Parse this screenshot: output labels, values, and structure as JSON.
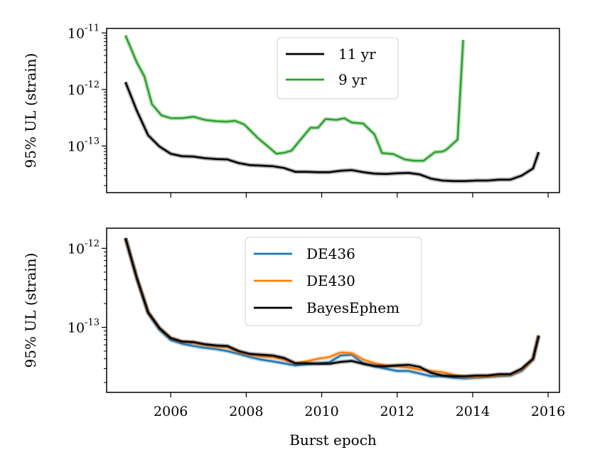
{
  "chart_data": [
    {
      "type": "line",
      "ylabel": "95% UL (strain)",
      "yscale": "log",
      "ylim": [
        1.5e-14,
        1.2e-11
      ],
      "xlim": [
        2004.3,
        2016.3
      ],
      "ytick_labels": [
        "10^-11",
        "10^-12",
        "10^-13"
      ],
      "ytick_values": [
        1e-11,
        1e-12,
        1e-13
      ],
      "legend_position": "top-center",
      "series": [
        {
          "name": "11 yr",
          "color": "#000000",
          "x": [
            2004.8,
            2005.1,
            2005.4,
            2005.7,
            2006.0,
            2006.3,
            2006.6,
            2006.9,
            2007.2,
            2007.5,
            2007.8,
            2008.1,
            2008.4,
            2008.7,
            2009.0,
            2009.3,
            2009.6,
            2009.9,
            2010.2,
            2010.5,
            2010.8,
            2011.1,
            2011.4,
            2011.7,
            2012.0,
            2012.3,
            2012.6,
            2012.9,
            2013.2,
            2013.5,
            2013.8,
            2014.1,
            2014.4,
            2014.7,
            2015.0,
            2015.3,
            2015.6,
            2015.75
          ],
          "y": [
            1.35e-12,
            4.2e-13,
            1.55e-13,
            9.8e-14,
            7.3e-14,
            6.6e-14,
            6.5e-14,
            6.1e-14,
            5.9e-14,
            5.8e-14,
            5e-14,
            4.6e-14,
            4.5e-14,
            4.4e-14,
            4.1e-14,
            3.5e-14,
            3.5e-14,
            3.45e-14,
            3.45e-14,
            3.65e-14,
            3.75e-14,
            3.45e-14,
            3.25e-14,
            3.2e-14,
            3.3e-14,
            3.35e-14,
            3.15e-14,
            2.65e-14,
            2.45e-14,
            2.4e-14,
            2.4e-14,
            2.45e-14,
            2.45e-14,
            2.55e-14,
            2.55e-14,
            3e-14,
            4e-14,
            7.8e-14
          ]
        },
        {
          "name": "9 yr",
          "color": "#2ca02c",
          "x": [
            2004.8,
            2005.1,
            2005.3,
            2005.5,
            2005.75,
            2006.0,
            2006.3,
            2006.6,
            2006.9,
            2007.2,
            2007.5,
            2007.7,
            2007.95,
            2008.3,
            2008.6,
            2008.8,
            2009.0,
            2009.2,
            2009.4,
            2009.7,
            2009.9,
            2010.1,
            2010.4,
            2010.6,
            2010.8,
            2011.1,
            2011.4,
            2011.6,
            2011.9,
            2012.2,
            2012.45,
            2012.7,
            2013.0,
            2013.2,
            2013.3,
            2013.6,
            2013.75
          ],
          "y": [
            9e-12,
            3e-12,
            1.7e-12,
            5.5e-13,
            3.5e-13,
            3.1e-13,
            3.1e-13,
            3.3e-13,
            2.9e-13,
            2.75e-13,
            2.7e-13,
            2.8e-13,
            2.4e-13,
            1.4e-13,
            9.5e-14,
            7.3e-14,
            7.6e-14,
            8.3e-14,
            1.2e-13,
            2.1e-13,
            2.1e-13,
            3e-13,
            2.9e-13,
            3.1e-13,
            2.6e-13,
            2.5e-13,
            1.6e-13,
            7.5e-14,
            7.2e-14,
            5.8e-14,
            5.5e-14,
            5.5e-14,
            7.8e-14,
            8e-14,
            8.6e-14,
            1.3e-13,
            7.5e-12
          ]
        }
      ]
    },
    {
      "type": "line",
      "ylabel": "95% UL (strain)",
      "xlabel": "Burst epoch",
      "yscale": "log",
      "ylim": [
        1.5e-14,
        1.8e-12
      ],
      "xlim": [
        2004.3,
        2016.3
      ],
      "xtick_labels": [
        "2006",
        "2008",
        "2010",
        "2012",
        "2014",
        "2016"
      ],
      "xtick_values": [
        2006,
        2008,
        2010,
        2012,
        2014,
        2016
      ],
      "ytick_labels": [
        "10^-12",
        "10^-13"
      ],
      "ytick_values": [
        1e-12,
        1e-13
      ],
      "legend_position": "top-center",
      "series": [
        {
          "name": "DE436",
          "color": "#1f77b4",
          "x": [
            2004.8,
            2005.1,
            2005.4,
            2005.7,
            2006.0,
            2006.3,
            2006.6,
            2006.9,
            2007.2,
            2007.5,
            2007.8,
            2008.1,
            2008.4,
            2008.7,
            2009.0,
            2009.3,
            2009.6,
            2009.9,
            2010.2,
            2010.5,
            2010.8,
            2011.1,
            2011.4,
            2011.7,
            2012.0,
            2012.3,
            2012.6,
            2012.9,
            2013.2,
            2013.5,
            2013.8,
            2014.1,
            2014.4,
            2014.7,
            2015.0,
            2015.3,
            2015.6,
            2015.75
          ],
          "y": [
            1.35e-12,
            4.2e-13,
            1.5e-13,
            9.3e-14,
            6.9e-14,
            6.2e-14,
            5.8e-14,
            5.5e-14,
            5.3e-14,
            5e-14,
            4.6e-14,
            4.2e-14,
            3.9e-14,
            3.7e-14,
            3.5e-14,
            3.3e-14,
            3.4e-14,
            3.5e-14,
            3.6e-14,
            4.4e-14,
            4.5e-14,
            3.5e-14,
            3.2e-14,
            3e-14,
            2.8e-14,
            2.8e-14,
            2.6e-14,
            2.4e-14,
            2.4e-14,
            2.3e-14,
            2.25e-14,
            2.3e-14,
            2.35e-14,
            2.4e-14,
            2.45e-14,
            2.8e-14,
            3.9e-14,
            7.9e-14
          ]
        },
        {
          "name": "DE430",
          "color": "#ff7f0e",
          "x": [
            2004.8,
            2005.1,
            2005.4,
            2005.7,
            2006.0,
            2006.3,
            2006.6,
            2006.9,
            2007.2,
            2007.5,
            2007.8,
            2008.1,
            2008.4,
            2008.7,
            2009.0,
            2009.3,
            2009.6,
            2009.9,
            2010.2,
            2010.5,
            2010.8,
            2011.1,
            2011.4,
            2011.7,
            2012.0,
            2012.3,
            2012.6,
            2012.9,
            2013.2,
            2013.5,
            2013.8,
            2014.1,
            2014.4,
            2014.7,
            2015.0,
            2015.3,
            2015.6,
            2015.75
          ],
          "y": [
            1.35e-12,
            4.2e-13,
            1.55e-13,
            9.8e-14,
            7.3e-14,
            6.6e-14,
            6.4e-14,
            6e-14,
            5.7e-14,
            5.6e-14,
            4.9e-14,
            4.5e-14,
            4.3e-14,
            4.2e-14,
            3.9e-14,
            3.5e-14,
            3.7e-14,
            4e-14,
            4.2e-14,
            4.8e-14,
            4.7e-14,
            3.9e-14,
            3.5e-14,
            3.3e-14,
            3.2e-14,
            3.1e-14,
            2.9e-14,
            2.8e-14,
            2.7e-14,
            2.5e-14,
            2.35e-14,
            2.35e-14,
            2.4e-14,
            2.45e-14,
            2.5e-14,
            2.9e-14,
            3.9e-14,
            8e-14
          ]
        },
        {
          "name": "BayesEphem",
          "color": "#000000",
          "x": [
            2004.8,
            2005.1,
            2005.4,
            2005.7,
            2006.0,
            2006.3,
            2006.6,
            2006.9,
            2007.2,
            2007.5,
            2007.8,
            2008.1,
            2008.4,
            2008.7,
            2009.0,
            2009.3,
            2009.6,
            2009.9,
            2010.2,
            2010.5,
            2010.8,
            2011.1,
            2011.4,
            2011.7,
            2012.0,
            2012.3,
            2012.6,
            2012.9,
            2013.2,
            2013.5,
            2013.8,
            2014.1,
            2014.4,
            2014.7,
            2015.0,
            2015.3,
            2015.6,
            2015.75
          ],
          "y": [
            1.35e-12,
            4.2e-13,
            1.55e-13,
            9.8e-14,
            7.3e-14,
            6.6e-14,
            6.5e-14,
            6.1e-14,
            5.9e-14,
            5.8e-14,
            5e-14,
            4.6e-14,
            4.5e-14,
            4.4e-14,
            4.1e-14,
            3.5e-14,
            3.5e-14,
            3.45e-14,
            3.45e-14,
            3.65e-14,
            3.75e-14,
            3.45e-14,
            3.25e-14,
            3.2e-14,
            3.3e-14,
            3.35e-14,
            3.15e-14,
            2.65e-14,
            2.45e-14,
            2.4e-14,
            2.4e-14,
            2.45e-14,
            2.45e-14,
            2.55e-14,
            2.55e-14,
            3e-14,
            4e-14,
            7.8e-14
          ]
        }
      ]
    }
  ]
}
